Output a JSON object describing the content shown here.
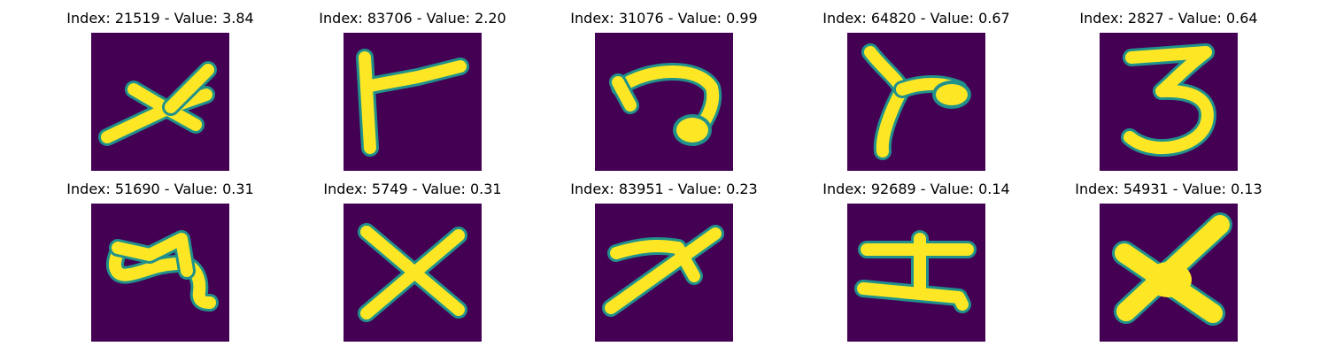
{
  "colors": {
    "background": "#440154",
    "mid": "#21918c",
    "foreground": "#fde725"
  },
  "panels": [
    {
      "title": "Index: 21519 - Value: 3.84",
      "glyph": "x-cross-small"
    },
    {
      "title": "Index: 83706 - Value: 2.20",
      "glyph": "vertical-stroke-with-branch"
    },
    {
      "title": "Index: 31076 - Value: 0.99",
      "glyph": "hook-shape"
    },
    {
      "title": "Index: 64820 - Value: 0.67",
      "glyph": "curved-stroke-with-blob"
    },
    {
      "title": "Index: 2827 - Value: 0.64",
      "glyph": "digit-three"
    },
    {
      "title": "Index: 51690 - Value: 0.31",
      "glyph": "blob-four"
    },
    {
      "title": "Index: 5749 - Value: 0.31",
      "glyph": "x-cross-large"
    },
    {
      "title": "Index: 83951 - Value: 0.23",
      "glyph": "slanted-cross"
    },
    {
      "title": "Index: 92689 - Value: 0.14",
      "glyph": "horizontal-bars"
    },
    {
      "title": "Index: 54931 - Value: 0.13",
      "glyph": "x-cross-thick"
    }
  ]
}
